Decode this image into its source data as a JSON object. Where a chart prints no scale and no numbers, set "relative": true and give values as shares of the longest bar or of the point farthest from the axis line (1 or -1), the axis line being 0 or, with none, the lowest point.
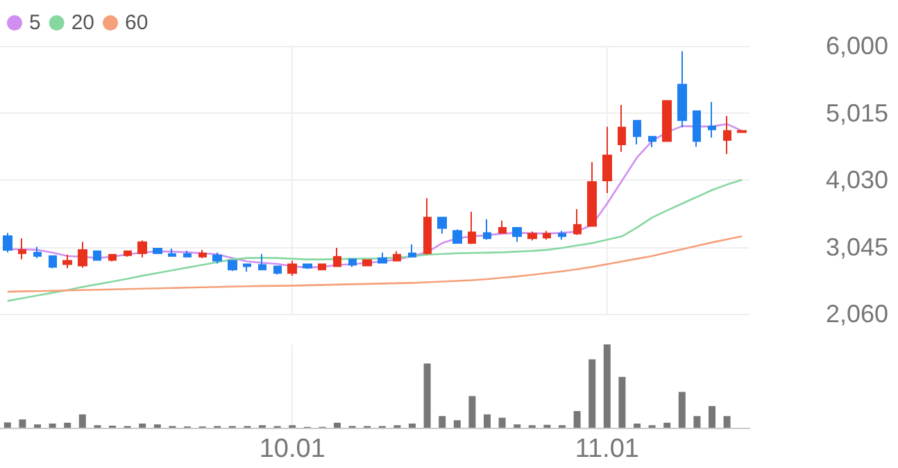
{
  "chart_data": [
    {
      "type": "candlestick",
      "categories": [
        null,
        null,
        null,
        null,
        null,
        null,
        null,
        null,
        null,
        null,
        null,
        null,
        null,
        null,
        null,
        null,
        null,
        null,
        null,
        "10.01",
        null,
        null,
        null,
        null,
        null,
        null,
        null,
        null,
        null,
        null,
        null,
        null,
        null,
        null,
        null,
        null,
        null,
        null,
        null,
        null,
        "11.01",
        null,
        null,
        null,
        null,
        null,
        null,
        null,
        null,
        null
      ],
      "ohlc": [
        [
          3202,
          3249,
          2964,
          2998
        ],
        [
          2950,
          3170,
          2860,
          2998
        ],
        [
          2960,
          3045,
          2880,
          2910
        ],
        [
          2910,
          2910,
          2730,
          2750
        ],
        [
          2790,
          2930,
          2730,
          2840
        ],
        [
          2770,
          3120,
          2740,
          2998
        ],
        [
          2980,
          2990,
          2840,
          2850
        ],
        [
          2850,
          2940,
          2830,
          2930
        ],
        [
          2920,
          2990,
          2900,
          2980
        ],
        [
          2950,
          3140,
          2890,
          3115
        ],
        [
          3020,
          3030,
          2940,
          2950
        ],
        [
          2940,
          3020,
          2910,
          2910
        ],
        [
          2940,
          2990,
          2900,
          2900
        ],
        [
          2900,
          3000,
          2880,
          2950
        ],
        [
          2920,
          2960,
          2800,
          2840
        ],
        [
          2840,
          2840,
          2690,
          2710
        ],
        [
          2790,
          2800,
          2680,
          2760
        ],
        [
          2780,
          2940,
          2710,
          2710
        ],
        [
          2760,
          2760,
          2640,
          2660
        ],
        [
          2660,
          2840,
          2620,
          2790
        ],
        [
          2790,
          2800,
          2720,
          2740
        ],
        [
          2710,
          2800,
          2700,
          2790
        ],
        [
          2760,
          3030,
          2760,
          2900
        ],
        [
          2860,
          2870,
          2750,
          2780
        ],
        [
          2770,
          2860,
          2760,
          2850
        ],
        [
          2880,
          2960,
          2800,
          2810
        ],
        [
          2840,
          2980,
          2830,
          2930
        ],
        [
          2950,
          3080,
          2890,
          2900
        ],
        [
          2950,
          3760,
          2930,
          3475
        ],
        [
          3475,
          3480,
          3240,
          3320
        ],
        [
          3280,
          3300,
          3100,
          3100
        ],
        [
          3100,
          3560,
          3085,
          3260
        ],
        [
          3250,
          3450,
          3150,
          3170
        ],
        [
          3250,
          3430,
          3240,
          3325
        ],
        [
          3325,
          3330,
          3120,
          3200
        ],
        [
          3170,
          3270,
          3140,
          3240
        ],
        [
          3180,
          3280,
          3150,
          3240
        ],
        [
          3240,
          3280,
          3150,
          3200
        ],
        [
          3240,
          3600,
          3220,
          3370
        ],
        [
          3350,
          4290,
          3350,
          4000
        ],
        [
          4020,
          4810,
          3835,
          4390
        ],
        [
          4550,
          5130,
          4440,
          4800
        ],
        [
          4900,
          4900,
          4550,
          4670
        ],
        [
          4665,
          4665,
          4510,
          4600
        ],
        [
          4600,
          5190,
          4600,
          5190
        ],
        [
          5430,
          5920,
          4800,
          4905
        ],
        [
          5040,
          5040,
          4515,
          4600
        ],
        [
          4815,
          5175,
          4650,
          4770
        ],
        [
          4615,
          4970,
          4410,
          4750
        ],
        [
          4730,
          4750,
          4730,
          4750
        ]
      ],
      "series": [
        {
          "name": "5",
          "type": "line",
          "color": "#d08ff0",
          "values": [
            3010,
            3010,
            3000,
            2960,
            2910,
            2900,
            2880,
            2900,
            2935,
            2960,
            2980,
            2975,
            2965,
            2950,
            2935,
            2880,
            2830,
            2810,
            2795,
            2760,
            2740,
            2750,
            2780,
            2790,
            2810,
            2830,
            2860,
            2910,
            2965,
            3100,
            3170,
            3200,
            3215,
            3240,
            3250,
            3245,
            3240,
            3250,
            3270,
            3370,
            3680,
            4020,
            4360,
            4600,
            4730,
            4820,
            4815,
            4815,
            4850,
            4750
          ]
        },
        {
          "name": "20",
          "type": "line",
          "color": "#86d8a0",
          "values": [
            2250,
            2290,
            2330,
            2370,
            2410,
            2455,
            2495,
            2535,
            2575,
            2620,
            2660,
            2700,
            2740,
            2780,
            2820,
            2860,
            2880,
            2885,
            2880,
            2870,
            2860,
            2860,
            2865,
            2870,
            2872,
            2875,
            2890,
            2905,
            2930,
            2940,
            2950,
            2955,
            2960,
            2965,
            2975,
            2985,
            3000,
            3030,
            3065,
            3100,
            3150,
            3200,
            3330,
            3475,
            3580,
            3680,
            3780,
            3880,
            3960,
            4030
          ]
        },
        {
          "name": "60",
          "type": "line",
          "color": "#f5a07a",
          "values": [
            2385,
            2390,
            2395,
            2400,
            2405,
            2410,
            2415,
            2420,
            2425,
            2430,
            2435,
            2440,
            2445,
            2450,
            2455,
            2460,
            2465,
            2470,
            2472,
            2475,
            2480,
            2485,
            2490,
            2495,
            2500,
            2505,
            2510,
            2515,
            2525,
            2535,
            2545,
            2555,
            2570,
            2590,
            2610,
            2635,
            2660,
            2685,
            2715,
            2750,
            2790,
            2830,
            2870,
            2910,
            2960,
            3010,
            3060,
            3110,
            3155,
            3200
          ]
        }
      ],
      "ylim": [
        2060,
        6000
      ],
      "yticks": [
        {
          "value": 2060,
          "label": "2,060"
        },
        {
          "value": 3045,
          "label": "3,045"
        },
        {
          "value": 4030,
          "label": "4,030"
        },
        {
          "value": 5015,
          "label": "5,015"
        },
        {
          "value": 6000,
          "label": "6,000"
        }
      ],
      "grid": true,
      "legend": "top left",
      "tick_labels": "y",
      "marker": "none"
    },
    {
      "type": "bar",
      "relative": true,
      "color": "#777777",
      "categories": [
        null,
        null,
        null,
        null,
        null,
        null,
        null,
        null,
        null,
        null,
        null,
        null,
        null,
        null,
        null,
        null,
        null,
        null,
        null,
        "10.01",
        null,
        null,
        null,
        null,
        null,
        null,
        null,
        null,
        null,
        null,
        null,
        null,
        null,
        null,
        null,
        null,
        null,
        null,
        null,
        null,
        "11.01",
        null,
        null,
        null,
        null,
        null,
        null,
        null,
        null,
        null
      ],
      "values": [
        0.064,
        0.1,
        0.04,
        0.05,
        0.06,
        0.16,
        0.03,
        0.025,
        0.02,
        0.05,
        0.04,
        0.02,
        0.015,
        0.015,
        0.02,
        0.02,
        0.02,
        0.03,
        0.02,
        0.03,
        0.01,
        0.01,
        0.06,
        0.02,
        0.02,
        0.02,
        0.03,
        0.05,
        0.77,
        0.14,
        0.09,
        0.38,
        0.16,
        0.12,
        0.04,
        0.03,
        0.035,
        0.03,
        0.2,
        0.82,
        1,
        0.61,
        0.05,
        0.03,
        0.06,
        0.43,
        0.14,
        0.26,
        0.14,
        null
      ],
      "grid": "x",
      "tick_labels": "x"
    }
  ]
}
